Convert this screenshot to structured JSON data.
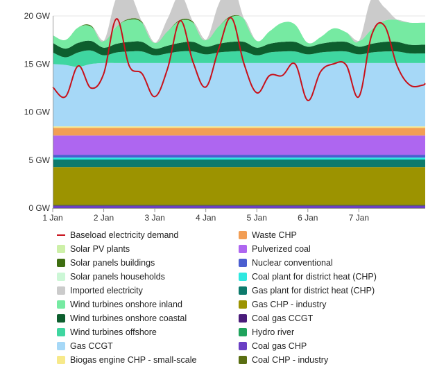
{
  "chart_data": {
    "type": "area",
    "title": "",
    "xlabel": "",
    "ylabel": "",
    "y_unit": "GW",
    "ylim": [
      0,
      20
    ],
    "xlim": [
      0,
      7.3
    ],
    "x_ticks": [
      {
        "x": 0,
        "label": "1 Jan"
      },
      {
        "x": 1,
        "label": "2 Jan"
      },
      {
        "x": 2,
        "label": "3 Jan"
      },
      {
        "x": 3,
        "label": "4 Jan"
      },
      {
        "x": 4,
        "label": "5 Jan"
      },
      {
        "x": 5,
        "label": "6 Jan"
      },
      {
        "x": 6,
        "label": "7 Jan"
      }
    ],
    "y_ticks": [
      {
        "y": 0,
        "label": "0 GW"
      },
      {
        "y": 5,
        "label": "5 GW"
      },
      {
        "y": 10,
        "label": "10 GW"
      },
      {
        "y": 15,
        "label": "15 GW"
      },
      {
        "y": 20,
        "label": "20 GW"
      }
    ],
    "grid": "horizontal",
    "legend_position": "bottom",
    "x": [
      0,
      0.25,
      0.5,
      0.75,
      1,
      1.25,
      1.5,
      1.75,
      2,
      2.25,
      2.5,
      2.75,
      3,
      3.25,
      3.5,
      3.75,
      4,
      4.25,
      4.5,
      4.75,
      5,
      5.25,
      5.5,
      5.75,
      6,
      6.25,
      6.5,
      6.75,
      7,
      7.25,
      7.3
    ],
    "stack_order_bottom_to_top": [
      "Coal gas CHP",
      "Coal CHP - industry",
      "Gas CHP - industry",
      "Gas plant for district heat (CHP)",
      "Coal plant for district heat (CHP)",
      "Nuclear conventional",
      "Pulverized coal",
      "Waste CHP",
      "Biogas engine CHP - small-scale",
      "Gas CCGT",
      "Wind turbines offshore",
      "Wind turbines onshore coastal",
      "Wind turbines onshore inland",
      "Solar panels households",
      "Solar panels buildings",
      "Solar PV plants",
      "Imported electricity"
    ],
    "series": [
      {
        "name": "Coal gas CHP",
        "kind": "area",
        "color": "#6a3fc4",
        "values": [
          0.25,
          0.25,
          0.25,
          0.25,
          0.25,
          0.25,
          0.25,
          0.25,
          0.25,
          0.25,
          0.25,
          0.25,
          0.25,
          0.25,
          0.25,
          0.25,
          0.25,
          0.25,
          0.25,
          0.25,
          0.25,
          0.25,
          0.25,
          0.25,
          0.25,
          0.25,
          0.25,
          0.25,
          0.25,
          0.25,
          0.25
        ]
      },
      {
        "name": "Coal CHP - industry",
        "kind": "area",
        "color": "#5a6e12",
        "values": [
          0.1,
          0.1,
          0.1,
          0.1,
          0.1,
          0.1,
          0.1,
          0.1,
          0.1,
          0.1,
          0.1,
          0.1,
          0.1,
          0.1,
          0.1,
          0.1,
          0.1,
          0.1,
          0.1,
          0.1,
          0.1,
          0.1,
          0.1,
          0.1,
          0.1,
          0.1,
          0.1,
          0.1,
          0.1,
          0.1,
          0.1
        ]
      },
      {
        "name": "Gas CHP - industry",
        "kind": "area",
        "color": "#9c9300",
        "values": [
          3.9,
          3.9,
          3.9,
          3.9,
          3.9,
          3.9,
          3.9,
          3.9,
          3.9,
          3.9,
          3.9,
          3.9,
          3.9,
          3.9,
          3.9,
          3.9,
          3.9,
          3.9,
          3.9,
          3.9,
          3.9,
          3.9,
          3.9,
          3.9,
          3.9,
          3.9,
          3.9,
          3.9,
          3.9,
          3.9,
          3.9
        ]
      },
      {
        "name": "Gas plant for district heat (CHP)",
        "kind": "area",
        "color": "#0d7a6c",
        "values": [
          0.8,
          0.8,
          0.8,
          0.8,
          0.8,
          0.8,
          0.8,
          0.8,
          0.8,
          0.8,
          0.8,
          0.8,
          0.8,
          0.8,
          0.8,
          0.8,
          0.8,
          0.8,
          0.8,
          0.8,
          0.8,
          0.8,
          0.8,
          0.8,
          0.8,
          0.8,
          0.8,
          0.8,
          0.8,
          0.8,
          0.8
        ]
      },
      {
        "name": "Coal plant for district heat (CHP)",
        "kind": "area",
        "color": "#2ee8e0",
        "values": [
          0.2,
          0.2,
          0.2,
          0.2,
          0.2,
          0.2,
          0.2,
          0.2,
          0.2,
          0.2,
          0.2,
          0.2,
          0.2,
          0.2,
          0.2,
          0.2,
          0.2,
          0.2,
          0.2,
          0.2,
          0.2,
          0.2,
          0.2,
          0.2,
          0.2,
          0.2,
          0.2,
          0.2,
          0.2,
          0.2,
          0.2
        ]
      },
      {
        "name": "Nuclear conventional",
        "kind": "area",
        "color": "#4a5ed0",
        "values": [
          0.3,
          0.3,
          0.3,
          0.3,
          0.3,
          0.3,
          0.3,
          0.3,
          0.3,
          0.3,
          0.3,
          0.3,
          0.3,
          0.3,
          0.3,
          0.3,
          0.3,
          0.3,
          0.3,
          0.3,
          0.3,
          0.3,
          0.3,
          0.3,
          0.3,
          0.3,
          0.3,
          0.3,
          0.3,
          0.3,
          0.3
        ]
      },
      {
        "name": "Pulverized coal",
        "kind": "area",
        "color": "#ae66f0",
        "values": [
          2.0,
          2.0,
          2.0,
          2.0,
          2.0,
          2.0,
          2.0,
          2.0,
          2.0,
          2.0,
          2.0,
          2.0,
          2.0,
          2.0,
          2.0,
          2.0,
          2.0,
          2.0,
          2.0,
          2.0,
          2.0,
          2.0,
          2.0,
          2.0,
          2.0,
          2.0,
          2.0,
          2.0,
          2.0,
          2.0,
          2.0
        ]
      },
      {
        "name": "Waste CHP",
        "kind": "area",
        "color": "#f29e55",
        "values": [
          0.8,
          0.8,
          0.8,
          0.8,
          0.8,
          0.8,
          0.8,
          0.8,
          0.8,
          0.8,
          0.8,
          0.8,
          0.8,
          0.8,
          0.8,
          0.8,
          0.8,
          0.8,
          0.8,
          0.8,
          0.8,
          0.8,
          0.8,
          0.8,
          0.8,
          0.8,
          0.8,
          0.8,
          0.8,
          0.8,
          0.8
        ]
      },
      {
        "name": "Biogas engine CHP - small-scale",
        "kind": "area",
        "color": "#f7e98a",
        "values": [
          0.15,
          0.15,
          0.15,
          0.15,
          0.15,
          0.15,
          0.15,
          0.15,
          0.15,
          0.15,
          0.15,
          0.15,
          0.15,
          0.15,
          0.15,
          0.15,
          0.15,
          0.15,
          0.15,
          0.15,
          0.15,
          0.15,
          0.15,
          0.15,
          0.15,
          0.15,
          0.15,
          0.15,
          0.15,
          0.15,
          0.15
        ]
      },
      {
        "name": "Gas CCGT",
        "kind": "area",
        "color": "#a6d8f7",
        "values": [
          6.5,
          6.4,
          6.2,
          6.5,
          6.6,
          6.6,
          6.6,
          6.6,
          6.6,
          6.6,
          6.6,
          6.6,
          6.6,
          6.6,
          6.6,
          6.6,
          6.6,
          6.6,
          6.6,
          6.6,
          6.6,
          6.6,
          6.6,
          6.6,
          6.6,
          6.6,
          6.6,
          6.6,
          6.6,
          6.6,
          6.6
        ]
      },
      {
        "name": "Wind turbines offshore",
        "kind": "area",
        "color": "#3fd6a0",
        "values": [
          1.2,
          0.8,
          1.5,
          1.4,
          0.8,
          1.1,
          1.2,
          1.2,
          0.8,
          1.0,
          1.2,
          1.2,
          0.9,
          1.1,
          1.2,
          1.2,
          0.8,
          1.1,
          1.2,
          1.2,
          0.9,
          1.1,
          1.2,
          1.2,
          0.9,
          1.1,
          1.2,
          1.2,
          1.0,
          1.0,
          1.0
        ]
      },
      {
        "name": "Wind turbines onshore coastal",
        "kind": "area",
        "color": "#0d5e2e",
        "values": [
          1.0,
          0.9,
          1.0,
          1.0,
          0.8,
          0.9,
          1.0,
          1.0,
          0.7,
          0.8,
          0.9,
          1.0,
          0.8,
          0.9,
          1.0,
          1.0,
          0.8,
          0.9,
          1.0,
          1.0,
          0.8,
          0.9,
          1.0,
          1.0,
          0.8,
          0.9,
          1.0,
          1.0,
          0.9,
          0.9,
          0.9
        ]
      },
      {
        "name": "Wind turbines onshore inland",
        "kind": "area",
        "color": "#76eaa2",
        "values": [
          0.8,
          0.9,
          1.6,
          1.5,
          0.7,
          1.8,
          2.3,
          2.0,
          0.6,
          1.5,
          2.3,
          2.0,
          0.7,
          1.8,
          2.6,
          2.4,
          0.7,
          1.3,
          2.0,
          1.8,
          0.4,
          0.7,
          1.4,
          1.0,
          0.6,
          1.5,
          2.2,
          2.3,
          2.3,
          2.3,
          2.3
        ]
      },
      {
        "name": "Solar panels households",
        "kind": "area",
        "color": "#ccf7d6",
        "values": [
          0,
          0,
          0,
          0,
          0,
          0,
          0,
          0,
          0,
          0,
          0,
          0,
          0,
          0,
          0,
          0,
          0,
          0,
          0,
          0,
          0,
          0,
          0,
          0,
          0,
          0,
          0,
          0,
          0,
          0,
          0
        ]
      },
      {
        "name": "Solar panels buildings",
        "kind": "area",
        "color": "#3e6e11",
        "values": [
          0,
          0,
          0,
          0.1,
          0,
          0,
          0.1,
          0.1,
          0,
          0,
          0.1,
          0.1,
          0,
          0,
          0.1,
          0,
          0,
          0,
          0,
          0,
          0,
          0,
          0,
          0,
          0,
          0,
          0,
          0,
          0,
          0,
          0
        ]
      },
      {
        "name": "Solar PV plants",
        "kind": "area",
        "color": "#cdf0a8",
        "values": [
          0,
          0,
          0,
          0,
          0,
          0,
          0,
          0,
          0,
          0,
          0,
          0,
          0,
          0,
          0,
          0,
          0,
          0,
          0,
          0,
          0,
          0,
          0,
          0,
          0,
          0,
          0,
          0,
          0,
          0,
          0
        ]
      },
      {
        "name": "Imported electricity",
        "kind": "area",
        "color": "#cbcbcb",
        "values": [
          0,
          0,
          0,
          0,
          0,
          3.0,
          2.7,
          0,
          0,
          1.3,
          2.6,
          0,
          0,
          2.3,
          3.5,
          0,
          0,
          0,
          0,
          0,
          0,
          0,
          0,
          0,
          0,
          3.2,
          1.4,
          0,
          0,
          0,
          0
        ]
      },
      {
        "name": "Hydro river",
        "kind": "area",
        "color": "#1fa35c",
        "values": [
          0,
          0,
          0,
          0,
          0,
          0,
          0,
          0,
          0,
          0,
          0,
          0,
          0,
          0,
          0,
          0,
          0,
          0,
          0,
          0,
          0,
          0,
          0,
          0,
          0,
          0,
          0,
          0,
          0,
          0,
          0
        ]
      },
      {
        "name": "Coal gas CCGT",
        "kind": "area",
        "color": "#4a1c7a",
        "values": [
          0,
          0,
          0,
          0,
          0,
          0,
          0,
          0,
          0,
          0,
          0,
          0,
          0,
          0,
          0,
          0,
          0,
          0,
          0,
          0,
          0,
          0,
          0,
          0,
          0,
          0,
          0,
          0,
          0,
          0,
          0
        ]
      },
      {
        "name": "Baseload electricity demand",
        "kind": "line",
        "color": "#c8101a",
        "values": [
          12.6,
          11.6,
          14.8,
          12.5,
          14.0,
          19.7,
          14.8,
          14.0,
          11.6,
          14.5,
          19.5,
          15.2,
          12.6,
          16.5,
          19.8,
          15.0,
          12.0,
          13.8,
          13.8,
          15.0,
          11.2,
          14.2,
          15.0,
          14.9,
          11.6,
          18.0,
          19.0,
          14.8,
          12.8,
          12.8,
          13.0
        ]
      }
    ],
    "legend": [
      {
        "label": "Baseload electricity demand",
        "color": "#c8101a",
        "kind": "line"
      },
      {
        "label": "Solar PV plants",
        "color": "#cdf0a8",
        "kind": "area"
      },
      {
        "label": "Solar panels buildings",
        "color": "#3e6e11",
        "kind": "area"
      },
      {
        "label": "Solar panels households",
        "color": "#ccf7d6",
        "kind": "area"
      },
      {
        "label": "Imported electricity",
        "color": "#cbcbcb",
        "kind": "area"
      },
      {
        "label": "Wind turbines onshore inland",
        "color": "#76eaa2",
        "kind": "area"
      },
      {
        "label": "Wind turbines onshore coastal",
        "color": "#0d5e2e",
        "kind": "area"
      },
      {
        "label": "Wind turbines offshore",
        "color": "#3fd6a0",
        "kind": "area"
      },
      {
        "label": "Gas CCGT",
        "color": "#a6d8f7",
        "kind": "area"
      },
      {
        "label": "Biogas engine CHP - small-scale",
        "color": "#f7e98a",
        "kind": "area"
      },
      {
        "label": "Waste CHP",
        "color": "#f29e55",
        "kind": "area"
      },
      {
        "label": "Pulverized coal",
        "color": "#ae66f0",
        "kind": "area"
      },
      {
        "label": "Nuclear conventional",
        "color": "#4a5ed0",
        "kind": "area"
      },
      {
        "label": "Coal plant for district heat (CHP)",
        "color": "#2ee8e0",
        "kind": "area"
      },
      {
        "label": "Gas plant for district heat (CHP)",
        "color": "#0d7a6c",
        "kind": "area"
      },
      {
        "label": "Gas CHP - industry",
        "color": "#9c9300",
        "kind": "area"
      },
      {
        "label": "Coal gas CCGT",
        "color": "#4a1c7a",
        "kind": "area"
      },
      {
        "label": "Hydro river",
        "color": "#1fa35c",
        "kind": "area"
      },
      {
        "label": "Coal gas CHP",
        "color": "#6a3fc4",
        "kind": "area"
      },
      {
        "label": "Coal CHP - industry",
        "color": "#5a6e12",
        "kind": "area"
      }
    ]
  }
}
